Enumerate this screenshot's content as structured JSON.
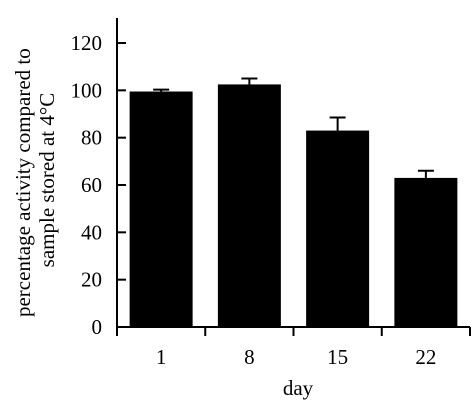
{
  "chart_data": {
    "type": "bar",
    "categories": [
      "1",
      "8",
      "15",
      "22"
    ],
    "values": [
      99.5,
      102.5,
      83,
      63
    ],
    "error_bars": [
      0.8,
      2.5,
      5.5,
      3
    ],
    "xlabel": "day",
    "ylabel_lines": [
      "percentage activity compared to",
      "sample stored at 4°C"
    ],
    "ylim": [
      0,
      120
    ],
    "yticks": [
      0,
      20,
      40,
      60,
      80,
      100,
      120
    ],
    "grid": false,
    "legend": "none",
    "bar_color": "#000000"
  }
}
